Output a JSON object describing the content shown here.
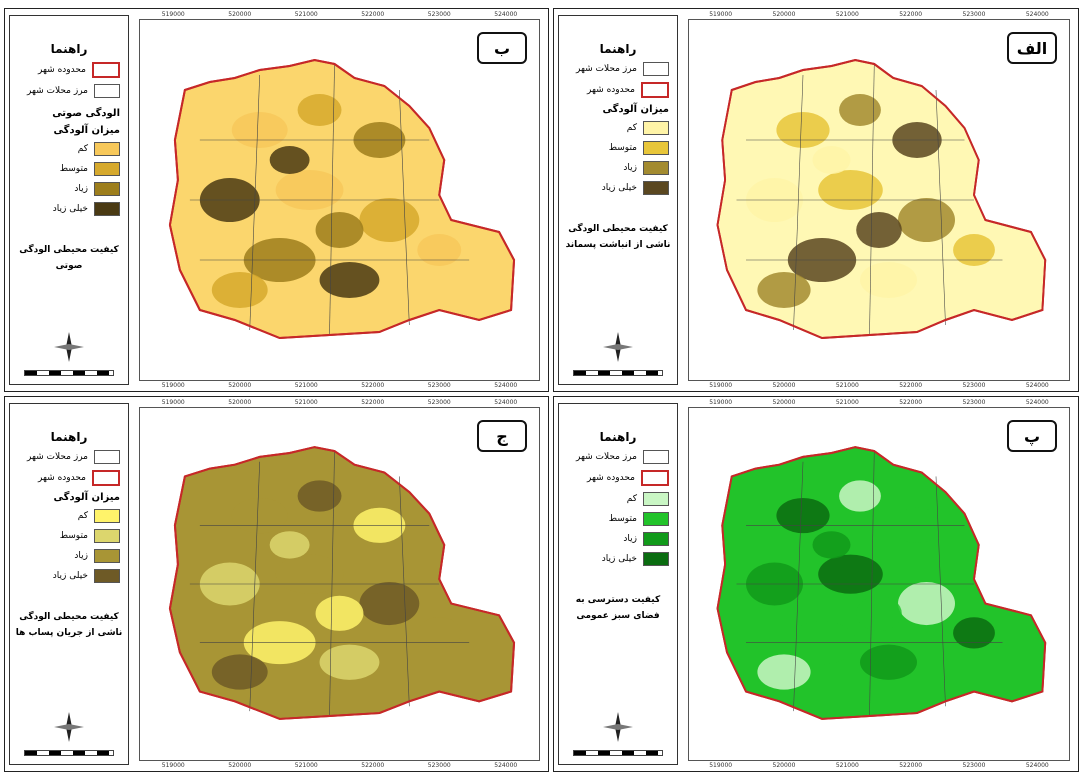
{
  "legend_title": "راهنما",
  "labels": {
    "boundary_neighborhoods": "مرز محلات شهر",
    "city_limits": "محدوده شهر",
    "pollution_level": "میزان آلودگی",
    "noise_pollution": "الودگی صوتی",
    "low": "کم",
    "medium": "متوسط",
    "high": "زیاد",
    "very_high": "خیلی زیاد"
  },
  "ticks": [
    "519000",
    "520000",
    "521000",
    "522000",
    "523000",
    "524000"
  ],
  "panels": [
    {
      "badge": "ب",
      "desc": "کیفیت محیطی الودگی صوتی",
      "colors": {
        "base": "#fbd66d",
        "low": "#f7c85a",
        "medium": "#d6a92d",
        "high": "#9d7e1c",
        "very_high": "#4a3a13"
      }
    },
    {
      "badge": "الف",
      "desc": "کیفیت محیطی الودگی ناشی از انباشت پسماند",
      "colors": {
        "base": "#fff8b4",
        "low": "#fff4a7",
        "medium": "#e8c63a",
        "high": "#a38b30",
        "very_high": "#5a4720"
      }
    },
    {
      "badge": "ج",
      "desc": "کیفیت محیطی الودگی ناشی از جریان پساب ها",
      "colors": {
        "base": "#a89535",
        "low": "#fff36a",
        "medium": "#dcd66d",
        "high": "#a89535",
        "very_high": "#6e5a26"
      }
    },
    {
      "badge": "پ",
      "desc": "کیفیت دسترسی به فضای سبز عمومی",
      "colors": {
        "base": "#22c32a",
        "low": "#c9f6c4",
        "medium": "#22c32a",
        "high": "#119a1a",
        "very_high": "#0a6c10"
      }
    }
  ]
}
